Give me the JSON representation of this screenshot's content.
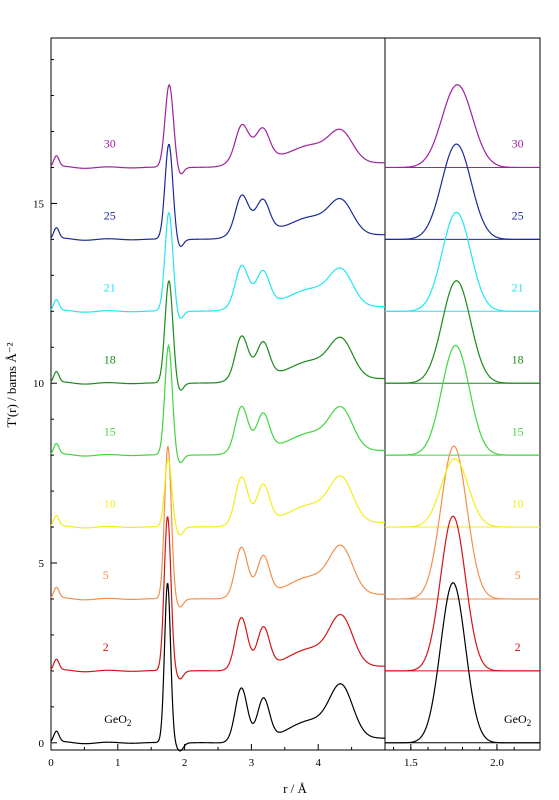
{
  "chart_data": {
    "type": "line",
    "title": "",
    "ylabel": "T'(r) / barns Å⁻²",
    "xlabel": "r / Å",
    "ylim": [
      -0.2,
      19.6
    ],
    "y_ticks": [
      "0",
      "5",
      "10",
      "15"
    ],
    "panels": [
      {
        "name": "main",
        "xlim": [
          0,
          5
        ],
        "x_ticks": [
          "0",
          "1",
          "2",
          "3",
          "4"
        ],
        "x_tick_values": [
          0,
          1,
          2,
          3,
          4
        ]
      },
      {
        "name": "inset",
        "xlim": [
          1.35,
          2.25
        ],
        "x_ticks": [
          "1.5",
          "2.0"
        ],
        "x_tick_values": [
          1.5,
          2.0
        ]
      }
    ],
    "series": [
      {
        "name": "GeO₂",
        "label": "GeO",
        "label_sub": "2",
        "offset": 0,
        "color": "#000000",
        "label_x": 1.0,
        "label_x_inset": 2.12
      },
      {
        "name": "2",
        "label": "2",
        "label_sub": "",
        "offset": 2,
        "color": "#d41616",
        "label_x": 0.82,
        "label_x_inset": 2.12
      },
      {
        "name": "5",
        "label": "5",
        "label_sub": "",
        "offset": 4,
        "color": "#f0904e",
        "label_x": 0.82,
        "label_x_inset": 2.12
      },
      {
        "name": "10",
        "label": "10",
        "label_sub": "",
        "offset": 6,
        "color": "#f0ee18",
        "label_x": 0.88,
        "label_x_inset": 2.12
      },
      {
        "name": "15",
        "label": "15",
        "label_sub": "",
        "offset": 8,
        "color": "#3ed63e",
        "label_x": 0.88,
        "label_x_inset": 2.12
      },
      {
        "name": "18",
        "label": "18",
        "label_sub": "",
        "offset": 10,
        "color": "#1a8a1a",
        "label_x": 0.88,
        "label_x_inset": 2.12
      },
      {
        "name": "21",
        "label": "21",
        "label_sub": "",
        "offset": 12,
        "color": "#22e6f2",
        "label_x": 0.88,
        "label_x_inset": 2.12
      },
      {
        "name": "25",
        "label": "25",
        "label_sub": "",
        "offset": 14,
        "color": "#1a2a9a",
        "label_x": 0.88,
        "label_x_inset": 2.12
      },
      {
        "name": "30",
        "label": "30",
        "label_sub": "",
        "offset": 16,
        "color": "#a020a0",
        "label_x": 0.88,
        "label_x_inset": 2.12
      }
    ],
    "grid": false,
    "legend": "none"
  }
}
